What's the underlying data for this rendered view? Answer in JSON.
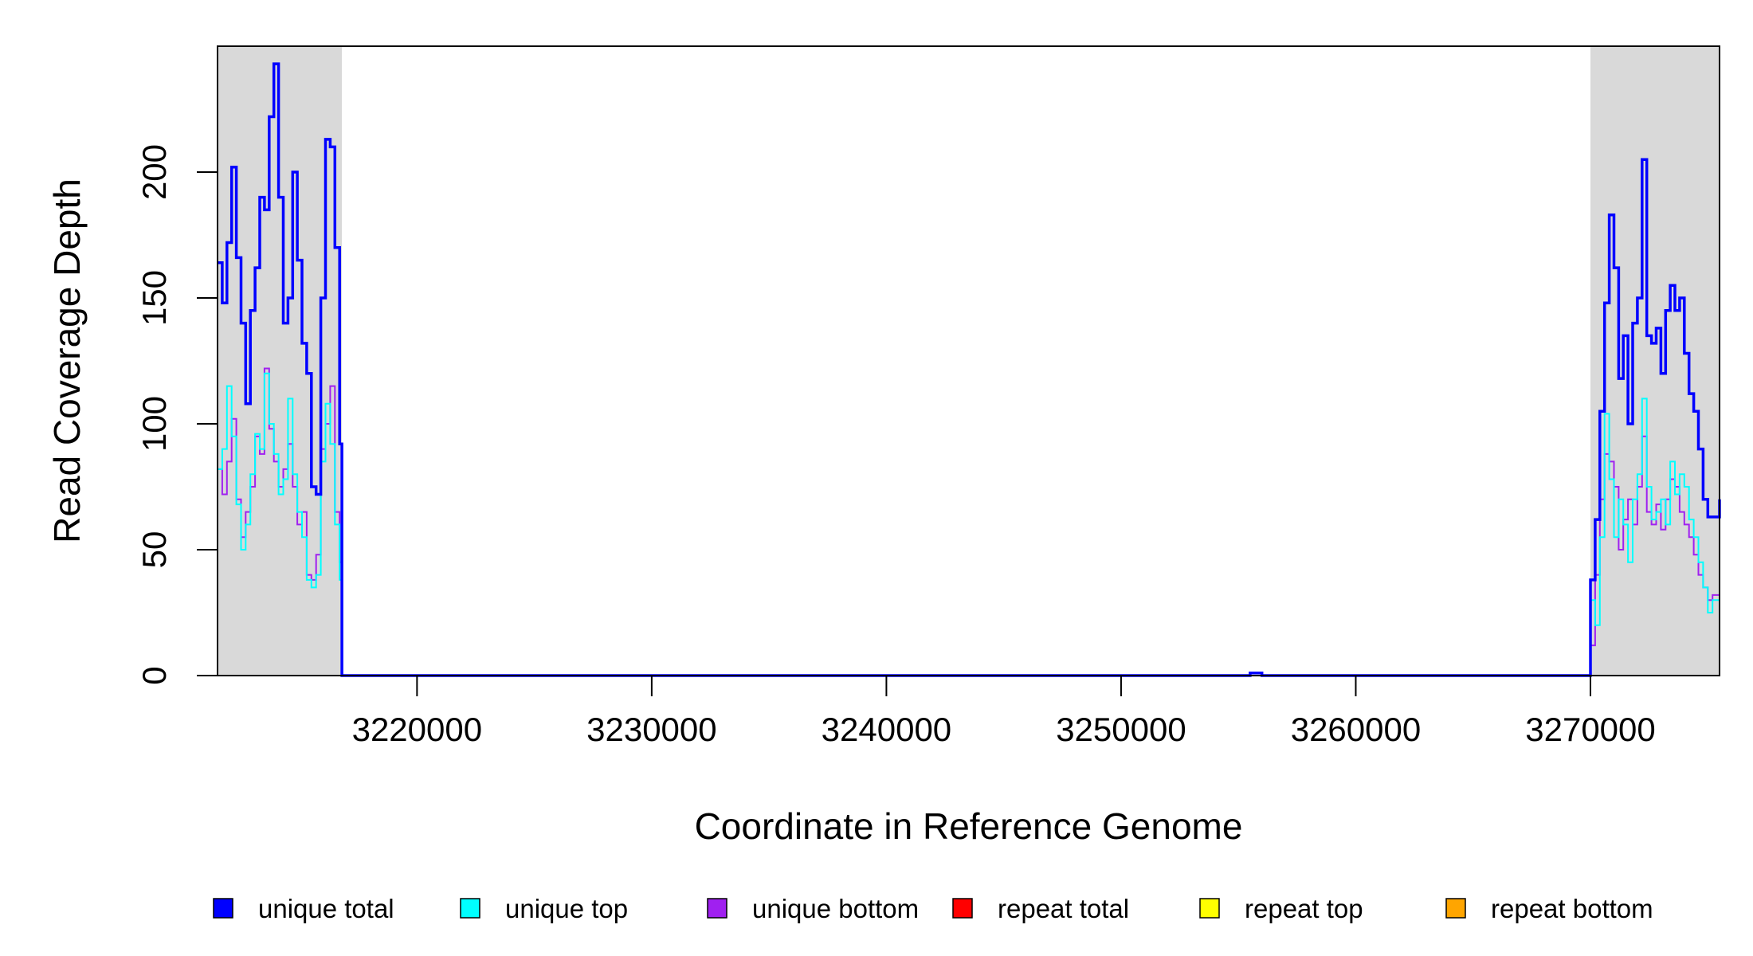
{
  "chart_data": {
    "type": "line",
    "title": "",
    "xlabel": "Coordinate in Reference Genome",
    "ylabel": "Read Coverage Depth",
    "xlim": [
      3211500,
      3275500
    ],
    "ylim": [
      0,
      250
    ],
    "x_ticks": [
      3220000,
      3230000,
      3240000,
      3250000,
      3260000,
      3270000
    ],
    "x_tick_labels": [
      "3220000",
      "3230000",
      "3240000",
      "3250000",
      "3260000",
      "3270000"
    ],
    "y_ticks": [
      0,
      50,
      100,
      150,
      200
    ],
    "y_tick_labels": [
      "0",
      "50",
      "100",
      "150",
      "200"
    ],
    "shaded_regions": [
      [
        3211500,
        3216800
      ],
      [
        3270000,
        3275500
      ]
    ],
    "shade_color": "#d9d9d9",
    "grid": false,
    "legend_position": "bottom",
    "legend": [
      {
        "label": "unique total",
        "color": "#0000ff"
      },
      {
        "label": "unique top",
        "color": "#00ffff"
      },
      {
        "label": "unique bottom",
        "color": "#a020f0"
      },
      {
        "label": "repeat total",
        "color": "#ff0000"
      },
      {
        "label": "repeat top",
        "color": "#ffff00"
      },
      {
        "label": "repeat bottom",
        "color": "#ffa500"
      }
    ],
    "series": [
      {
        "name": "unique total",
        "color": "#0000ff",
        "x": [
          3211500,
          3211700,
          3211900,
          3212100,
          3212300,
          3212500,
          3212700,
          3212900,
          3213100,
          3213300,
          3213500,
          3213700,
          3213900,
          3214100,
          3214300,
          3214500,
          3214700,
          3214900,
          3215100,
          3215300,
          3215500,
          3215700,
          3215900,
          3216100,
          3216300,
          3216500,
          3216700,
          3216800,
          3230000,
          3255200,
          3255500,
          3256000,
          3256300,
          3264200,
          3264600,
          3269900,
          3270000,
          3270200,
          3270400,
          3270600,
          3270800,
          3271000,
          3271200,
          3271400,
          3271600,
          3271800,
          3272000,
          3272200,
          3272400,
          3272600,
          3272800,
          3273000,
          3273200,
          3273400,
          3273600,
          3273800,
          3274000,
          3274200,
          3274400,
          3274600,
          3274800,
          3275000,
          3275200,
          3275500
        ],
        "y": [
          164,
          148,
          172,
          202,
          166,
          140,
          108,
          145,
          162,
          190,
          185,
          222,
          243,
          190,
          140,
          150,
          200,
          165,
          132,
          120,
          75,
          72,
          150,
          213,
          210,
          170,
          92,
          0,
          0,
          0,
          1,
          0,
          0,
          0,
          0,
          0,
          38,
          62,
          105,
          148,
          183,
          162,
          118,
          135,
          100,
          140,
          150,
          205,
          135,
          132,
          138,
          120,
          145,
          155,
          145,
          150,
          128,
          112,
          105,
          90,
          70,
          63,
          63,
          70
        ]
      },
      {
        "name": "unique top",
        "color": "#00ffff",
        "x": [
          3211500,
          3211700,
          3211900,
          3212100,
          3212300,
          3212500,
          3212700,
          3212900,
          3213100,
          3213300,
          3213500,
          3213700,
          3213900,
          3214100,
          3214300,
          3214500,
          3214700,
          3214900,
          3215100,
          3215300,
          3215500,
          3215700,
          3215900,
          3216100,
          3216300,
          3216500,
          3216700,
          3216800,
          3230000,
          3255200,
          3255500,
          3256000,
          3256300,
          3264200,
          3264600,
          3269900,
          3270000,
          3270200,
          3270400,
          3270600,
          3270800,
          3271000,
          3271200,
          3271400,
          3271600,
          3271800,
          3272000,
          3272200,
          3272400,
          3272600,
          3272800,
          3273000,
          3273200,
          3273400,
          3273600,
          3273800,
          3274000,
          3274200,
          3274400,
          3274600,
          3274800,
          3275000,
          3275200,
          3275500
        ],
        "y": [
          82,
          90,
          115,
          95,
          68,
          50,
          60,
          80,
          96,
          90,
          120,
          100,
          88,
          72,
          78,
          110,
          80,
          65,
          55,
          38,
          35,
          40,
          85,
          108,
          92,
          60,
          38,
          0,
          0,
          0,
          1,
          0,
          0,
          0,
          0,
          0,
          30,
          20,
          55,
          104,
          78,
          55,
          70,
          60,
          45,
          70,
          80,
          110,
          75,
          62,
          65,
          70,
          60,
          85,
          72,
          80,
          75,
          62,
          55,
          45,
          35,
          25,
          30,
          38
        ]
      },
      {
        "name": "unique bottom",
        "color": "#a020f0",
        "x": [
          3211500,
          3211700,
          3211900,
          3212100,
          3212300,
          3212500,
          3212700,
          3212900,
          3213100,
          3213300,
          3213500,
          3213700,
          3213900,
          3214100,
          3214300,
          3214500,
          3214700,
          3214900,
          3215100,
          3215300,
          3215500,
          3215700,
          3215900,
          3216100,
          3216300,
          3216500,
          3216700,
          3216800,
          3230000,
          3255200,
          3255500,
          3256000,
          3256300,
          3264200,
          3264600,
          3269900,
          3270000,
          3270200,
          3270400,
          3270600,
          3270800,
          3271000,
          3271200,
          3271400,
          3271600,
          3271800,
          3272000,
          3272200,
          3272400,
          3272600,
          3272800,
          3273000,
          3273200,
          3273400,
          3273600,
          3273800,
          3274000,
          3274200,
          3274400,
          3274600,
          3274800,
          3275000,
          3275200,
          3275500
        ],
        "y": [
          82,
          72,
          85,
          102,
          70,
          55,
          65,
          75,
          95,
          88,
          122,
          98,
          85,
          75,
          82,
          92,
          75,
          60,
          65,
          40,
          38,
          48,
          90,
          100,
          115,
          65,
          45,
          0,
          0,
          0,
          1,
          0,
          0,
          0,
          0,
          0,
          12,
          40,
          70,
          88,
          85,
          75,
          50,
          62,
          70,
          60,
          75,
          95,
          65,
          60,
          68,
          58,
          70,
          78,
          75,
          65,
          60,
          55,
          48,
          40,
          35,
          30,
          32,
          35
        ]
      },
      {
        "name": "repeat total",
        "color": "#ff0000",
        "x": [
          3211500,
          3275500
        ],
        "y": [
          0,
          0
        ]
      },
      {
        "name": "repeat top",
        "color": "#ffff00",
        "x": [
          3211500,
          3275500
        ],
        "y": [
          0,
          0
        ]
      },
      {
        "name": "repeat bottom",
        "color": "#ffa500",
        "x": [
          3211500,
          3275500
        ],
        "y": [
          0,
          0
        ]
      }
    ]
  }
}
